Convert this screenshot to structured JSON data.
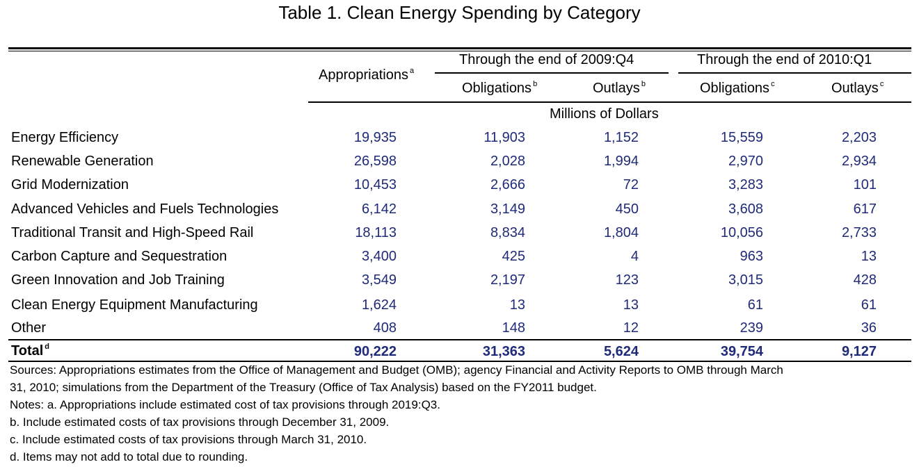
{
  "title": "Table 1. Clean Energy Spending by Category",
  "header": {
    "appropriations": "Appropriations",
    "appropriations_sup": "a",
    "group1": "Through the end of 2009:Q4",
    "group2": "Through the end of 2010:Q1",
    "obligations1": "Obligations",
    "obligations1_sup": "b",
    "outlays1": "Outlays",
    "outlays1_sup": "b",
    "obligations2": "Obligations",
    "obligations2_sup": "c",
    "outlays2": "Outlays",
    "outlays2_sup": "c",
    "units": "Millions of Dollars"
  },
  "rows": [
    {
      "label": "Energy Efficiency",
      "values": [
        "19,935",
        "11,903",
        "1,152",
        "15,559",
        "2,203"
      ]
    },
    {
      "label": "Renewable Generation",
      "values": [
        "26,598",
        "2,028",
        "1,994",
        "2,970",
        "2,934"
      ]
    },
    {
      "label": "Grid Modernization",
      "values": [
        "10,453",
        "2,666",
        "72",
        "3,283",
        "101"
      ]
    },
    {
      "label": "Advanced Vehicles and Fuels Technologies",
      "values": [
        "6,142",
        "3,149",
        "450",
        "3,608",
        "617"
      ]
    },
    {
      "label": "Traditional Transit and High-Speed Rail",
      "values": [
        "18,113",
        "8,834",
        "1,804",
        "10,056",
        "2,733"
      ]
    },
    {
      "label": "Carbon Capture and Sequestration",
      "values": [
        "3,400",
        "425",
        "4",
        "963",
        "13"
      ]
    },
    {
      "label": "Green Innovation and Job Training",
      "values": [
        "3,549",
        "2,197",
        "123",
        "3,015",
        "428"
      ]
    },
    {
      "label": "Clean Energy Equipment Manufacturing",
      "values": [
        "1,624",
        "13",
        "13",
        "61",
        "61"
      ]
    },
    {
      "label": "Other",
      "values": [
        "408",
        "148",
        "12",
        "239",
        "36"
      ]
    }
  ],
  "total": {
    "label": "Total",
    "sup": "d",
    "values": [
      "90,222",
      "31,363",
      "5,624",
      "39,754",
      "9,127"
    ]
  },
  "notes": [
    "Sources:  Appropriations estimates from the Office of Management and Budget (OMB); agency Financial and Activity Reports to OMB through March",
    "31, 2010; simulations from the Department of the Treasury (Office of Tax Analysis) based on the FY2011 budget.",
    "Notes:  a.  Appropriations include estimated cost of tax provisions through 2019:Q3.",
    "b. Include estimated costs of tax provisions through December 31, 2009.",
    "c. Include estimated costs of tax provisions through March 31, 2010.",
    "d. Items may not add to total due to rounding."
  ]
}
